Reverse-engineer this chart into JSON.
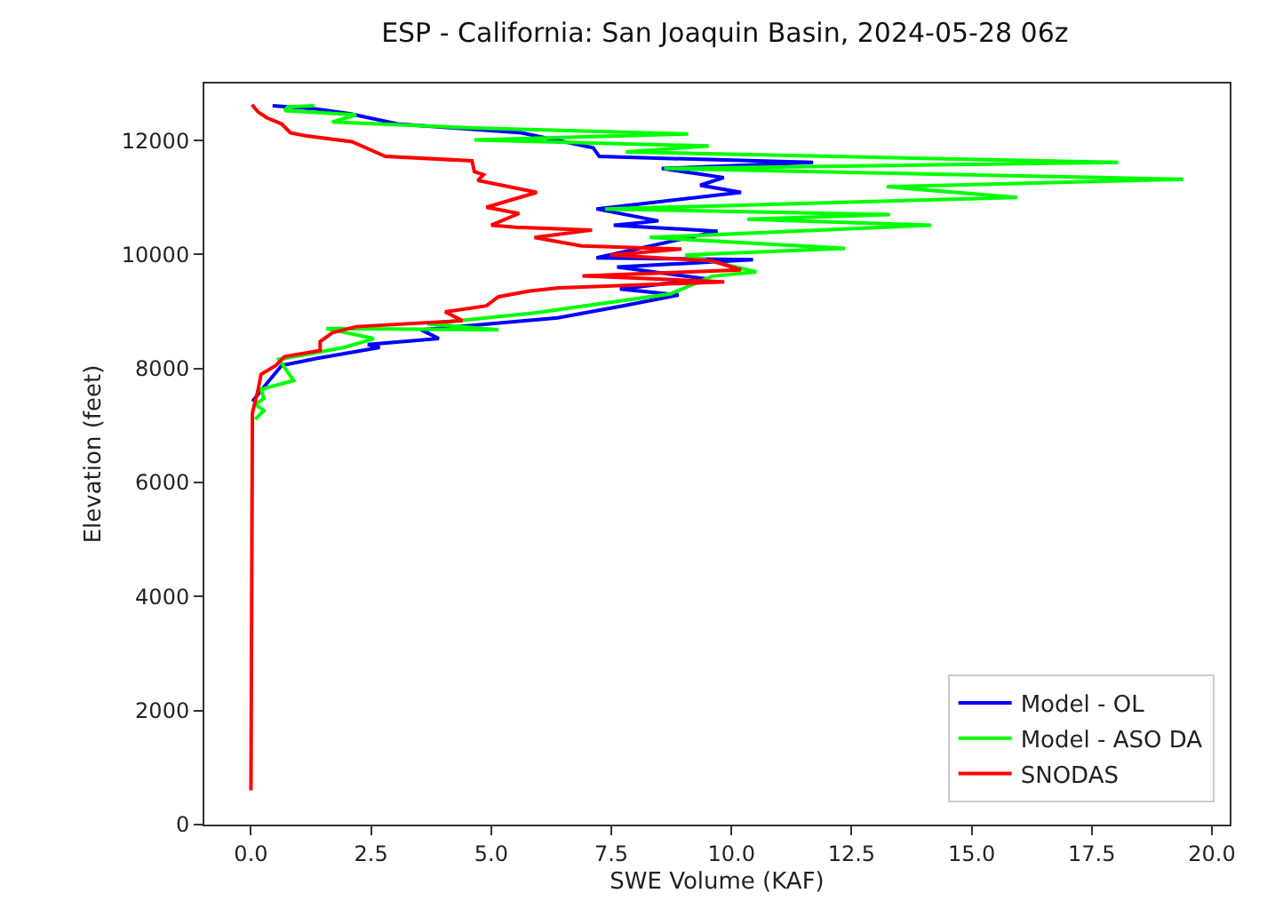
{
  "chart_data": {
    "type": "line",
    "title": "ESP - California: San Joaquin Basin, 2024-05-28 06z",
    "xlabel": "SWE Volume (KAF)",
    "ylabel": "Elevation (feet)",
    "xlim": [
      -0.97,
      20.37
    ],
    "xticks": [
      {
        "value": 0,
        "label": "0.0"
      },
      {
        "value": 2.5,
        "label": "2.5"
      },
      {
        "value": 5,
        "label": "5.0"
      },
      {
        "value": 7.5,
        "label": "7.5"
      },
      {
        "value": 10,
        "label": "10.0"
      },
      {
        "value": 12.5,
        "label": "12.5"
      },
      {
        "value": 15,
        "label": "15.0"
      },
      {
        "value": 17.5,
        "label": "17.5"
      },
      {
        "value": 20,
        "label": "20.0"
      }
    ],
    "ylim": [
      0,
      13000
    ],
    "yticks": [
      0,
      2000,
      4000,
      6000,
      8000,
      10000,
      12000
    ],
    "grid": false,
    "legend": "bottom right",
    "series": [
      {
        "name": "Model - OL",
        "color": "#0000ff",
        "x": [
          0.45,
          1.3,
          2.06,
          3.05,
          5.63,
          7.12,
          7.25,
          11.7,
          8.55,
          9.84,
          9.35,
          10.2,
          7.19,
          8.48,
          7.55,
          9.71,
          7.19,
          10.45,
          7.62,
          9.47,
          7.68,
          8.9,
          7.74,
          6.38,
          3.54,
          3.91,
          2.43,
          2.68,
          1.38,
          0.64,
          0.33,
          0.03
        ],
        "values": [
          12610,
          12560,
          12470,
          12290,
          12135,
          11875,
          11720,
          11615,
          11510,
          11350,
          11215,
          11090,
          10800,
          10590,
          10515,
          10410,
          9940,
          9910,
          9780,
          9575,
          9395,
          9290,
          9100,
          8890,
          8680,
          8525,
          8420,
          8370,
          8180,
          8055,
          7740,
          7425
        ]
      },
      {
        "name": "Model - ASO DA",
        "color": "#00ff00",
        "x": [
          1.32,
          0.77,
          0.7,
          2.19,
          1.69,
          4.65,
          9.1,
          4.65,
          9.53,
          7.8,
          18.05,
          8.6,
          19.4,
          13.23,
          15.95,
          7.37,
          13.3,
          10.33,
          14.16,
          8.3,
          12.37,
          9.04,
          10.52,
          9.6,
          8.73,
          5.89,
          3.67,
          5.15,
          1.57,
          2.56,
          1.94,
          0.58,
          0.89,
          0.21,
          0.27,
          0.09,
          0.27,
          0.09
        ],
        "values": [
          12610,
          12590,
          12525,
          12450,
          12325,
          12220,
          12115,
          12010,
          11905,
          11800,
          11615,
          11510,
          11320,
          11190,
          11000,
          10800,
          10700,
          10620,
          10515,
          10300,
          10110,
          9990,
          9695,
          9620,
          9310,
          8975,
          8785,
          8680,
          8700,
          8525,
          8370,
          8160,
          7790,
          7635,
          7475,
          7370,
          7265,
          7110
        ]
      },
      {
        "name": "SNODAS",
        "color": "#ff0000",
        "x": [
          0.02,
          0.15,
          0.33,
          0.64,
          0.82,
          1.13,
          2.1,
          2.8,
          4.6,
          4.65,
          4.84,
          4.72,
          5.95,
          4.9,
          5.58,
          5.0,
          5.52,
          7.1,
          5.9,
          6.88,
          8.96,
          7.48,
          9.6,
          10.2,
          6.9,
          9.85,
          6.4,
          5.8,
          5.15,
          4.9,
          4.04,
          4.4,
          2.19,
          1.7,
          1.44,
          1.44,
          0.7,
          0.52,
          0.21,
          0.15,
          0.03,
          0
        ],
        "values": [
          12630,
          12500,
          12400,
          12290,
          12135,
          12085,
          11980,
          11720,
          11645,
          11455,
          11400,
          11300,
          11090,
          10830,
          10720,
          10515,
          10480,
          10430,
          10300,
          10150,
          10095,
          9990,
          9890,
          9730,
          9625,
          9520,
          9415,
          9360,
          9260,
          9100,
          8995,
          8840,
          8735,
          8630,
          8475,
          8315,
          8210,
          8055,
          7900,
          7635,
          7220,
          600
        ]
      }
    ]
  }
}
